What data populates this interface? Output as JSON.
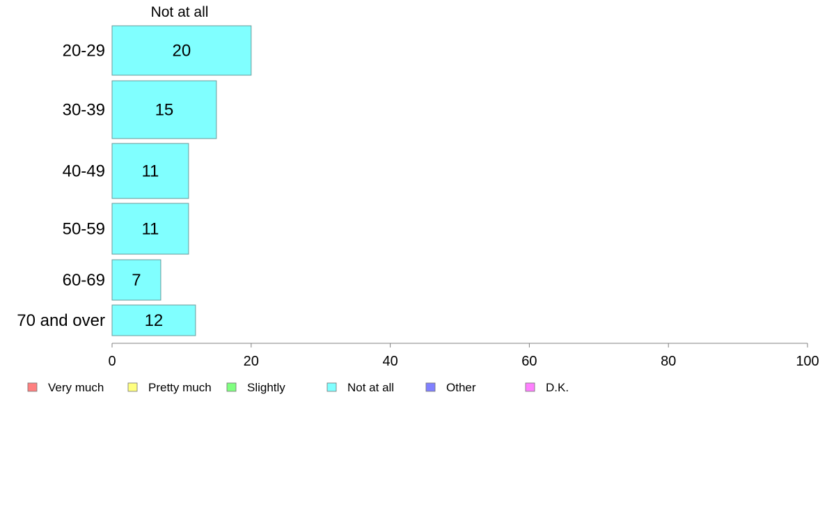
{
  "chart_data": {
    "type": "bar",
    "orientation": "horizontal",
    "column_header": "Not at all",
    "categories": [
      "20-29",
      "30-39",
      "40-49",
      "50-59",
      "60-69",
      "70 and over"
    ],
    "series": [
      {
        "name": "Not at all",
        "values": [
          20,
          15,
          11,
          11,
          7,
          12
        ]
      }
    ],
    "value_labels": [
      "20",
      "15",
      "11",
      "11",
      "7",
      "12"
    ],
    "xlim": [
      0,
      100
    ],
    "x_ticks": [
      0,
      20,
      40,
      60,
      80,
      100
    ],
    "x_tick_labels": [
      "0",
      "20",
      "40",
      "60",
      "80",
      "100"
    ],
    "grid": false,
    "legend": {
      "placement": "bottom-left",
      "items": [
        {
          "label": "Very much",
          "color": "#ff8080"
        },
        {
          "label": "Pretty much",
          "color": "#ffff80"
        },
        {
          "label": "Slightly",
          "color": "#80ff80"
        },
        {
          "label": "Not at all",
          "color": "#80ffff"
        },
        {
          "label": "Other",
          "color": "#8080ff"
        },
        {
          "label": "D.K.",
          "color": "#ff80ff"
        }
      ]
    },
    "bar_color": "#80ffff",
    "bar_border_color": "#6a9a9a",
    "axis_color": "#808080"
  }
}
